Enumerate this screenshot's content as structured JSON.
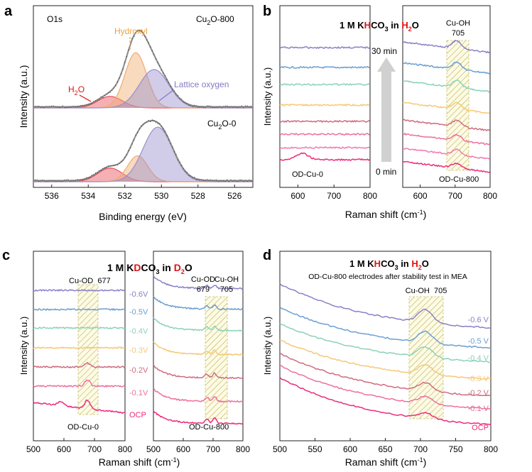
{
  "colors": {
    "h2o": "#e8505b",
    "hydroxyl": "#f0ac70",
    "lattice": "#9a8fcc",
    "envelope": "#8a8a8a",
    "frame": "#222222",
    "hatch": "#c8c070",
    "red": "#e11111",
    "arrow": "#d0d0d0",
    "v06": "#8b80c6",
    "v05": "#6b9fd2",
    "v04": "#8dd1b8",
    "v03": "#f6c877",
    "v02": "#d06a80",
    "v01": "#ee6f9f",
    "ocp": "#ee2a7b"
  },
  "panel_a": {
    "letter": "a",
    "top_label": "O1s",
    "top_sample": "Cu",
    "top_sample_sub": "2",
    "top_sample_suffix": "O-800",
    "bottom_sample": "Cu",
    "bottom_sample_sub": "2",
    "bottom_sample_suffix": "O-0",
    "hydroxyl_label": "Hydroxyl",
    "lattice_label": "Lattice oxygen",
    "h2o_label": "H",
    "h2o_sub": "2",
    "h2o_suffix": "O",
    "xlabel": "Binding energy (eV)",
    "ylabel": "Intensity (a.u.)",
    "xticks": [
      "536",
      "534",
      "532",
      "530",
      "528",
      "526"
    ]
  },
  "panel_b": {
    "letter": "b",
    "title_pre": "1 M K",
    "title_h": "H",
    "title_co": "CO",
    "title_sub": "3",
    "title_in": " in ",
    "title_h2": "H",
    "title_2": "2",
    "title_o": "O",
    "peak_label": "Cu-OH",
    "peak_value": "705",
    "time_top": "30 min",
    "time_bottom": "0 min",
    "left_sample": "OD-Cu-0",
    "right_sample": "OD-Cu-800",
    "xlabel": "Raman shift (cm",
    "xlabel_sup": "-1",
    "xlabel_end": ")",
    "ylabel": "Intensity (a.u.)",
    "xticks_left": [
      "600",
      "700",
      "800"
    ],
    "xticks_right": [
      "600",
      "700",
      "800"
    ]
  },
  "panel_c": {
    "letter": "c",
    "title_pre": "1 M K",
    "title_d": "D",
    "title_co": "CO",
    "title_sub": "3",
    "title_in": " in ",
    "title_d2": "D",
    "title_2": "2",
    "title_o": "O",
    "od_label": "Cu-OD",
    "od_value": "677",
    "od_label2": "Cu-OD",
    "od_value2": "679",
    "oh_label": "Cu-OH",
    "oh_value": "705",
    "potentials": [
      "-0.6V",
      "-0.5V",
      "-0.4V",
      "-0.3V",
      "-0.2V",
      "-0.1V",
      "OCP"
    ],
    "left_sample": "OD-Cu-0",
    "right_sample": "OD-Cu-800",
    "xlabel": "Raman shift (cm",
    "xlabel_sup": "-1",
    "xlabel_end": ")",
    "ylabel": "Intensity (a.u.)",
    "xticks_left": [
      "500",
      "600",
      "700",
      "800"
    ],
    "xticks_right": [
      "500",
      "600",
      "700",
      "800"
    ]
  },
  "panel_d": {
    "letter": "d",
    "title_pre": "1 M K",
    "title_h": "H",
    "title_co": "CO",
    "title_sub": "3",
    "title_in": " in ",
    "title_h2": "H",
    "title_2": "2",
    "title_o": "O",
    "subtitle": "OD-Cu-800 electrodes after stability test  in MEA",
    "peak_label": "Cu-OH",
    "peak_value": "705",
    "potentials": [
      "-0.6 V",
      "-0.5 V",
      "-0.4 V",
      "-0.3 V",
      "-0.2 V",
      "-0.1 V",
      "OCP"
    ],
    "xlabel": "Raman shift (cm",
    "xlabel_sup": "-1",
    "xlabel_end": ")",
    "ylabel": "Intensity (a.u.)",
    "xticks": [
      "500",
      "550",
      "600",
      "650",
      "700",
      "750",
      "800"
    ]
  },
  "chart_data": [
    {
      "type": "line",
      "panel": "a",
      "title": "O1s XPS",
      "xlabel": "Binding energy (eV)",
      "ylabel": "Intensity (a.u.)",
      "xlim": [
        537,
        525
      ],
      "x_reversed": true,
      "subplots": [
        {
          "name": "Cu2O-800",
          "components": [
            {
              "name": "H2O",
              "center": 532.8,
              "fwhm": 1.6,
              "height": 0.15
            },
            {
              "name": "Hydroxyl",
              "center": 531.4,
              "fwhm": 1.4,
              "height": 0.72
            },
            {
              "name": "Lattice oxygen",
              "center": 530.4,
              "fwhm": 1.9,
              "height": 0.5
            }
          ]
        },
        {
          "name": "Cu2O-0",
          "components": [
            {
              "name": "H2O",
              "center": 532.8,
              "fwhm": 1.6,
              "height": 0.2
            },
            {
              "name": "Hydroxyl",
              "center": 531.3,
              "fwhm": 1.3,
              "height": 0.38
            },
            {
              "name": "Lattice oxygen",
              "center": 530.2,
              "fwhm": 1.9,
              "height": 0.8
            }
          ]
        }
      ]
    },
    {
      "type": "line",
      "panel": "b",
      "title": "1 M KHCO3 in H2O",
      "xlabel": "Raman shift (cm-1)",
      "ylabel": "Intensity (a.u.)",
      "xlim": [
        550,
        800
      ],
      "time_range": [
        "0 min",
        "30 min"
      ],
      "peak": {
        "name": "Cu-OH",
        "x": 705,
        "band": [
          690,
          745
        ]
      },
      "series": [
        {
          "name": "OD-Cu-0 0 min",
          "color": "#ee2a7b",
          "features": [
            {
              "x": 615,
              "amp": 0.25
            }
          ]
        },
        {
          "name": "OD-Cu-0 30 min",
          "color": "#8b80c6",
          "features": []
        },
        {
          "name": "OD-Cu-800",
          "traces": 8,
          "features": [
            {
              "x": 705,
              "amp": 0.3
            }
          ]
        }
      ]
    },
    {
      "type": "line",
      "panel": "c",
      "title": "1 M KDCO3 in D2O",
      "xlabel": "Raman shift (cm-1)",
      "ylabel": "Intensity (a.u.)",
      "xlim": [
        500,
        800
      ],
      "potentials": [
        "-0.6V",
        "-0.5V",
        "-0.4V",
        "-0.3V",
        "-0.2V",
        "-0.1V",
        "OCP"
      ],
      "peaks": [
        {
          "name": "Cu-OD",
          "x": 677,
          "sample": "OD-Cu-0"
        },
        {
          "name": "Cu-OD",
          "x": 679,
          "sample": "OD-Cu-800"
        },
        {
          "name": "Cu-OH",
          "x": 705,
          "sample": "OD-Cu-800"
        }
      ]
    },
    {
      "type": "line",
      "panel": "d",
      "title": "1 M KHCO3 in H2O",
      "xlabel": "Raman shift (cm-1)",
      "ylabel": "Intensity (a.u.)",
      "xlim": [
        500,
        800
      ],
      "potentials": [
        "-0.6 V",
        "-0.5 V",
        "-0.4 V",
        "-0.3 V",
        "-0.2 V",
        "-0.1 V",
        "OCP"
      ],
      "peak": {
        "name": "Cu-OH",
        "x": 705,
        "band": [
          685,
          730
        ]
      }
    }
  ]
}
